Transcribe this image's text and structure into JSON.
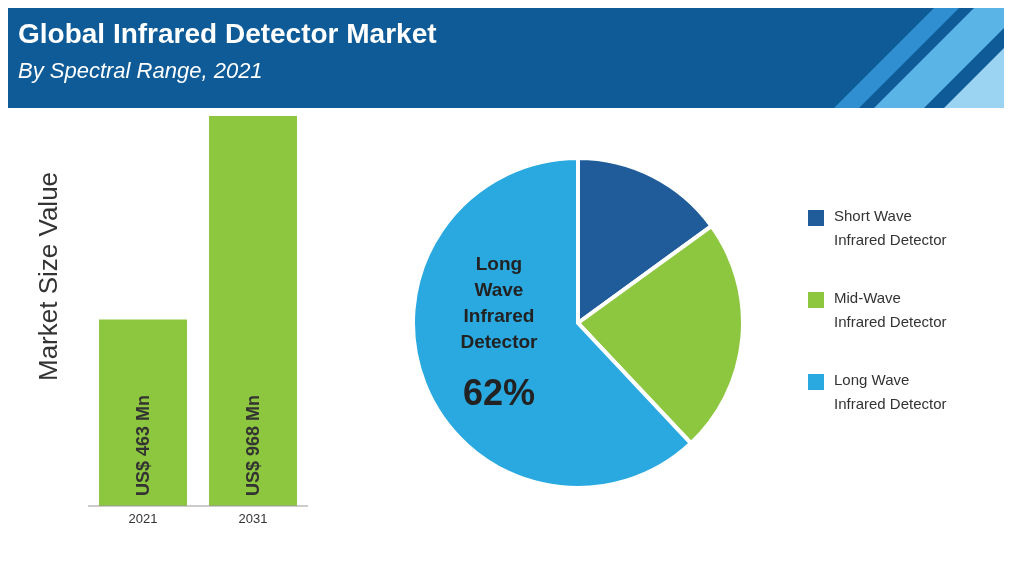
{
  "chart_data": [
    {
      "type": "bar",
      "title": "Global Infrared Detector Market",
      "subtitle": "By Spectral Range, 2021",
      "ylabel": "Market Size Value",
      "categories": [
        "2021",
        "2031"
      ],
      "values": [
        463,
        968
      ],
      "value_labels": [
        "US$ 463 Mn",
        "US$ 968 Mn"
      ],
      "color": "#8dc63f"
    },
    {
      "type": "pie",
      "categories": [
        "Short Wave Infrared Detector",
        "Mid-Wave Infrared Detector",
        "Long Wave Infrared Detector"
      ],
      "values": [
        15,
        23,
        62
      ],
      "value_labels": [
        null,
        null,
        "62%"
      ],
      "colors": [
        "#1f5c99",
        "#8dc63f",
        "#29a9e0"
      ],
      "legend": "right"
    }
  ]
}
